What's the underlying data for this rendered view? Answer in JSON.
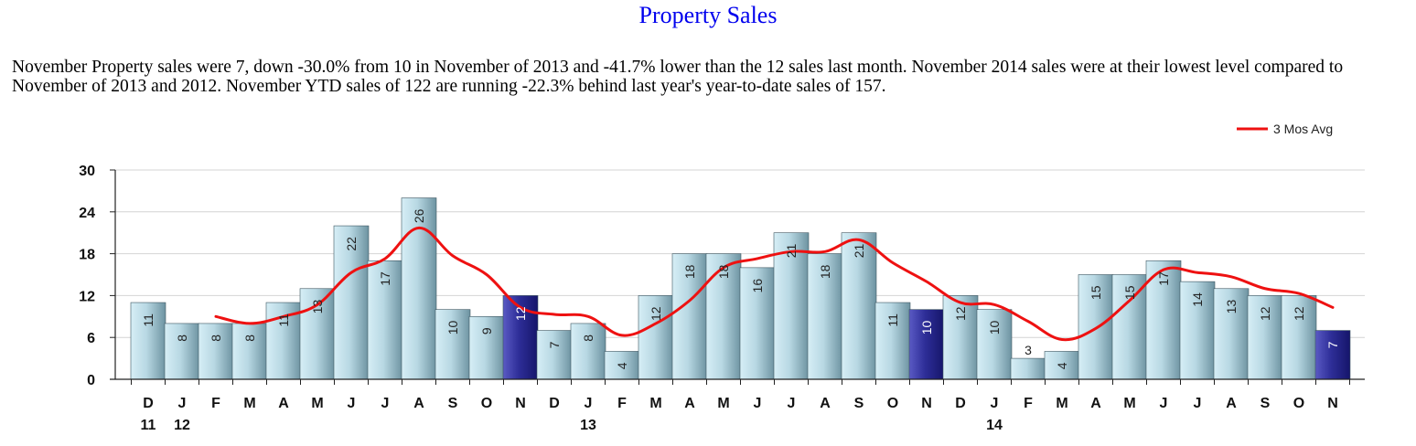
{
  "page": {
    "title": "Property Sales",
    "summary": "November Property sales were 7, down -30.0% from 10 in November of 2013 and -41.7% lower than the  12 sales last month.  November 2014 sales were at their lowest level compared to November of 2013 and 2012.  November YTD sales of 122 are running -22.3% behind last year's year-to-date sales of 157."
  },
  "colors": {
    "bar_light_top": "#cfe9f2",
    "bar_light_bottom": "#7ea9b8",
    "bar_dark": "#2b2b86",
    "avg_line": "#ee1111",
    "grid": "#d4d4d4"
  },
  "chart_data": {
    "type": "bar",
    "categories": [
      "D",
      "J",
      "F",
      "M",
      "A",
      "M",
      "J",
      "J",
      "A",
      "S",
      "O",
      "N",
      "D",
      "J",
      "F",
      "M",
      "A",
      "M",
      "J",
      "J",
      "A",
      "S",
      "O",
      "N",
      "D",
      "J",
      "F",
      "M",
      "A",
      "M",
      "J",
      "J",
      "A",
      "S",
      "O",
      "N"
    ],
    "year_labels": [
      {
        "index": 0,
        "label": "11"
      },
      {
        "index": 1,
        "label": "12"
      },
      {
        "index": 13,
        "label": "13"
      },
      {
        "index": 25,
        "label": "14"
      }
    ],
    "series": [
      {
        "values": [
          11,
          8,
          8,
          8,
          11,
          13,
          22,
          17,
          26,
          10,
          9,
          12,
          7,
          8,
          4,
          12,
          18,
          18,
          16,
          21,
          18,
          21,
          11,
          10,
          12,
          10,
          3,
          4,
          15,
          15,
          17,
          14,
          13,
          12,
          12,
          7
        ],
        "highlight_indices": [
          11,
          23,
          35
        ]
      },
      {
        "name": "3 Mos Avg",
        "type": "line",
        "values": [
          null,
          null,
          9.0,
          8.0,
          9.0,
          10.7,
          15.3,
          17.3,
          21.7,
          17.7,
          15.0,
          10.3,
          9.3,
          9.0,
          6.3,
          8.0,
          11.3,
          16.0,
          17.3,
          18.3,
          18.3,
          20.0,
          16.7,
          14.0,
          11.0,
          10.7,
          8.3,
          5.7,
          7.3,
          11.3,
          15.7,
          15.3,
          14.7,
          13.0,
          12.3,
          10.3
        ]
      }
    ],
    "yticks": [
      0,
      6,
      12,
      18,
      24,
      30
    ],
    "ylim": [
      0,
      30
    ],
    "grid": true,
    "legend": "top-right"
  }
}
